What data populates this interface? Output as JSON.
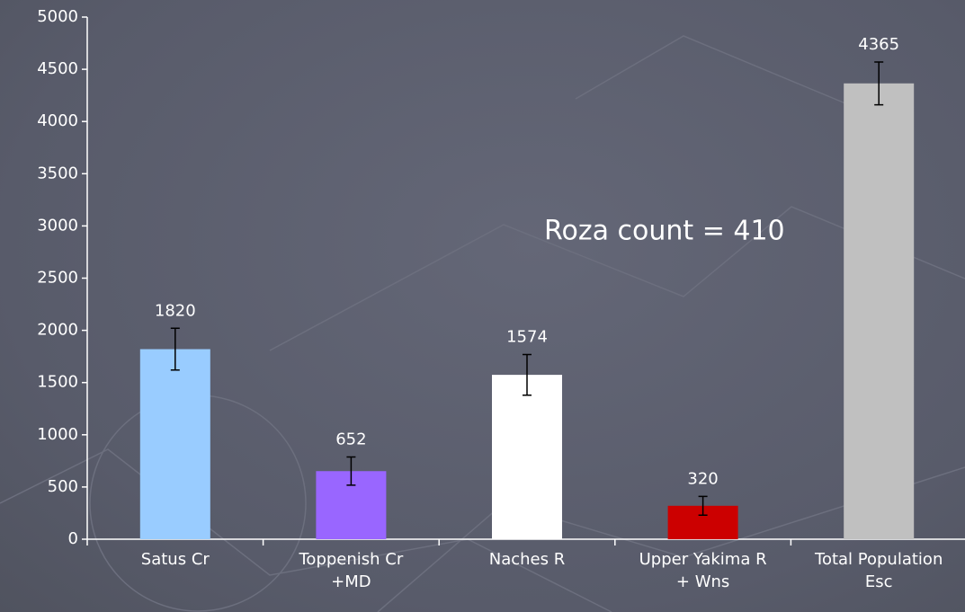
{
  "chart_data": {
    "type": "bar",
    "categories": [
      "Satus Cr",
      "Toppenish Cr\n+MD",
      "Naches R",
      "Upper Yakima R\n+ Wns",
      "Total Population\nEsc"
    ],
    "values": [
      1820,
      652,
      1574,
      320,
      4365
    ],
    "errors": [
      200,
      135,
      195,
      90,
      205
    ],
    "colors": [
      "#99ccff",
      "#9966ff",
      "#ffffff",
      "#cc0000",
      "#c0c0c0"
    ],
    "annotation": "Roza count = 410",
    "ylim": [
      0,
      5000
    ],
    "yticks": [
      0,
      500,
      1000,
      1500,
      2000,
      2500,
      3000,
      3500,
      4000,
      4500,
      5000
    ],
    "grid": false
  }
}
